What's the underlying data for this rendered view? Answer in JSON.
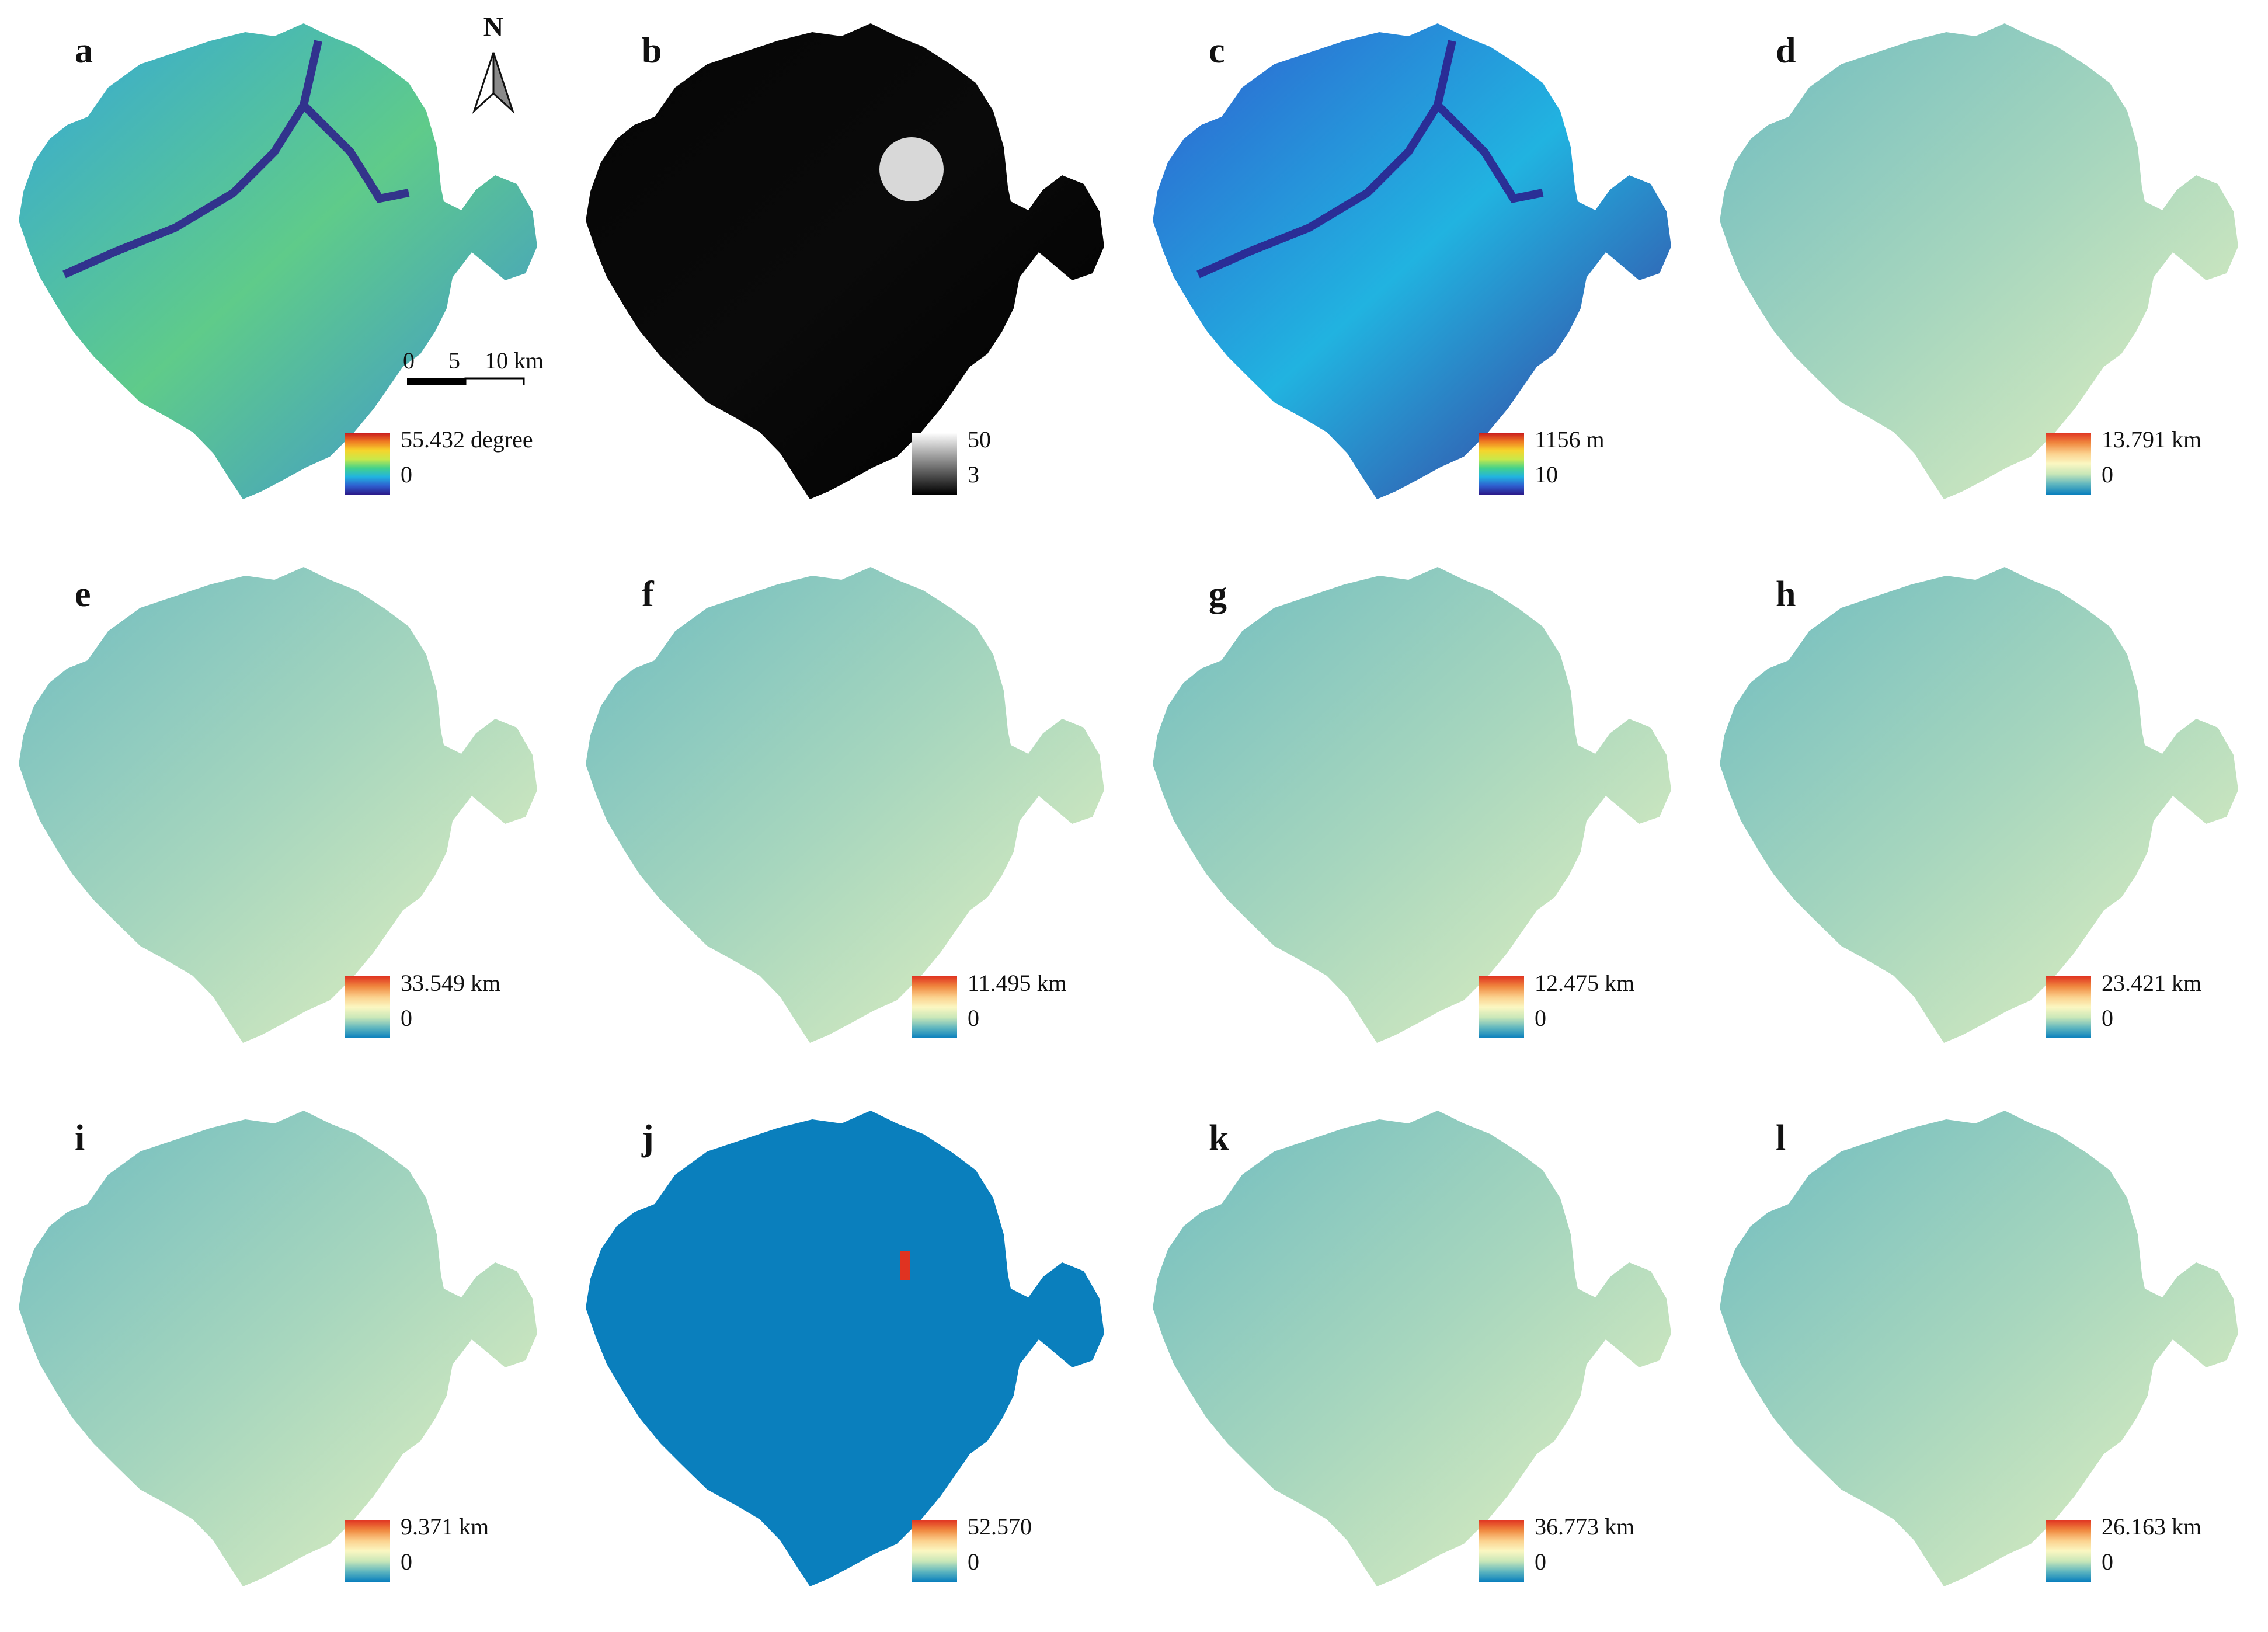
{
  "panels": [
    {
      "id": "a",
      "label": "a",
      "legend_max": "55.432 degree",
      "legend_min": "0",
      "ramp": "spectral",
      "style": "slope"
    },
    {
      "id": "b",
      "label": "b",
      "legend_max": "50",
      "legend_min": "3",
      "ramp": "gray",
      "style": "gray"
    },
    {
      "id": "c",
      "label": "c",
      "legend_max": "1156 m",
      "legend_min": "10",
      "ramp": "spectral",
      "style": "dem"
    },
    {
      "id": "d",
      "label": "d",
      "legend_max": "13.791 km",
      "legend_min": "0",
      "ramp": "distance",
      "style": "distance"
    },
    {
      "id": "e",
      "label": "e",
      "legend_max": "33.549 km",
      "legend_min": "0",
      "ramp": "distance",
      "style": "distance"
    },
    {
      "id": "f",
      "label": "f",
      "legend_max": "11.495 km",
      "legend_min": "0",
      "ramp": "distance",
      "style": "distance"
    },
    {
      "id": "g",
      "label": "g",
      "legend_max": "12.475 km",
      "legend_min": "0",
      "ramp": "distance",
      "style": "distance"
    },
    {
      "id": "h",
      "label": "h",
      "legend_max": "23.421 km",
      "legend_min": "0",
      "ramp": "distance",
      "style": "distance"
    },
    {
      "id": "i",
      "label": "i",
      "legend_max": "9.371 km",
      "legend_min": "0",
      "ramp": "distance",
      "style": "distance"
    },
    {
      "id": "j",
      "label": "j",
      "legend_max": "52.570",
      "legend_min": "0",
      "ramp": "distance",
      "style": "flat"
    },
    {
      "id": "k",
      "label": "k",
      "legend_max": "36.773 km",
      "legend_min": "0",
      "ramp": "distance",
      "style": "distance"
    },
    {
      "id": "l",
      "label": "l",
      "legend_max": "26.163 km",
      "legend_min": "0",
      "ramp": "distance",
      "style": "distance"
    }
  ],
  "north_arrow": {
    "label": "N",
    "icon": "north-arrow-icon"
  },
  "scale_bar": {
    "tick0": "0",
    "tick1": "5",
    "tick2": "10 km"
  },
  "colors": {
    "spectral": [
      "#2b1a8a",
      "#2e5fd0",
      "#21b3e0",
      "#44d28a",
      "#c9e84a",
      "#f6d42c",
      "#ef7a22",
      "#c8171d"
    ],
    "distance": [
      "#0a7fbd",
      "#5fb6bf",
      "#c9e7b8",
      "#fbf7c2",
      "#fbd08c",
      "#f0883f",
      "#e03321"
    ],
    "gray": [
      "#000000",
      "#ffffff"
    ]
  }
}
